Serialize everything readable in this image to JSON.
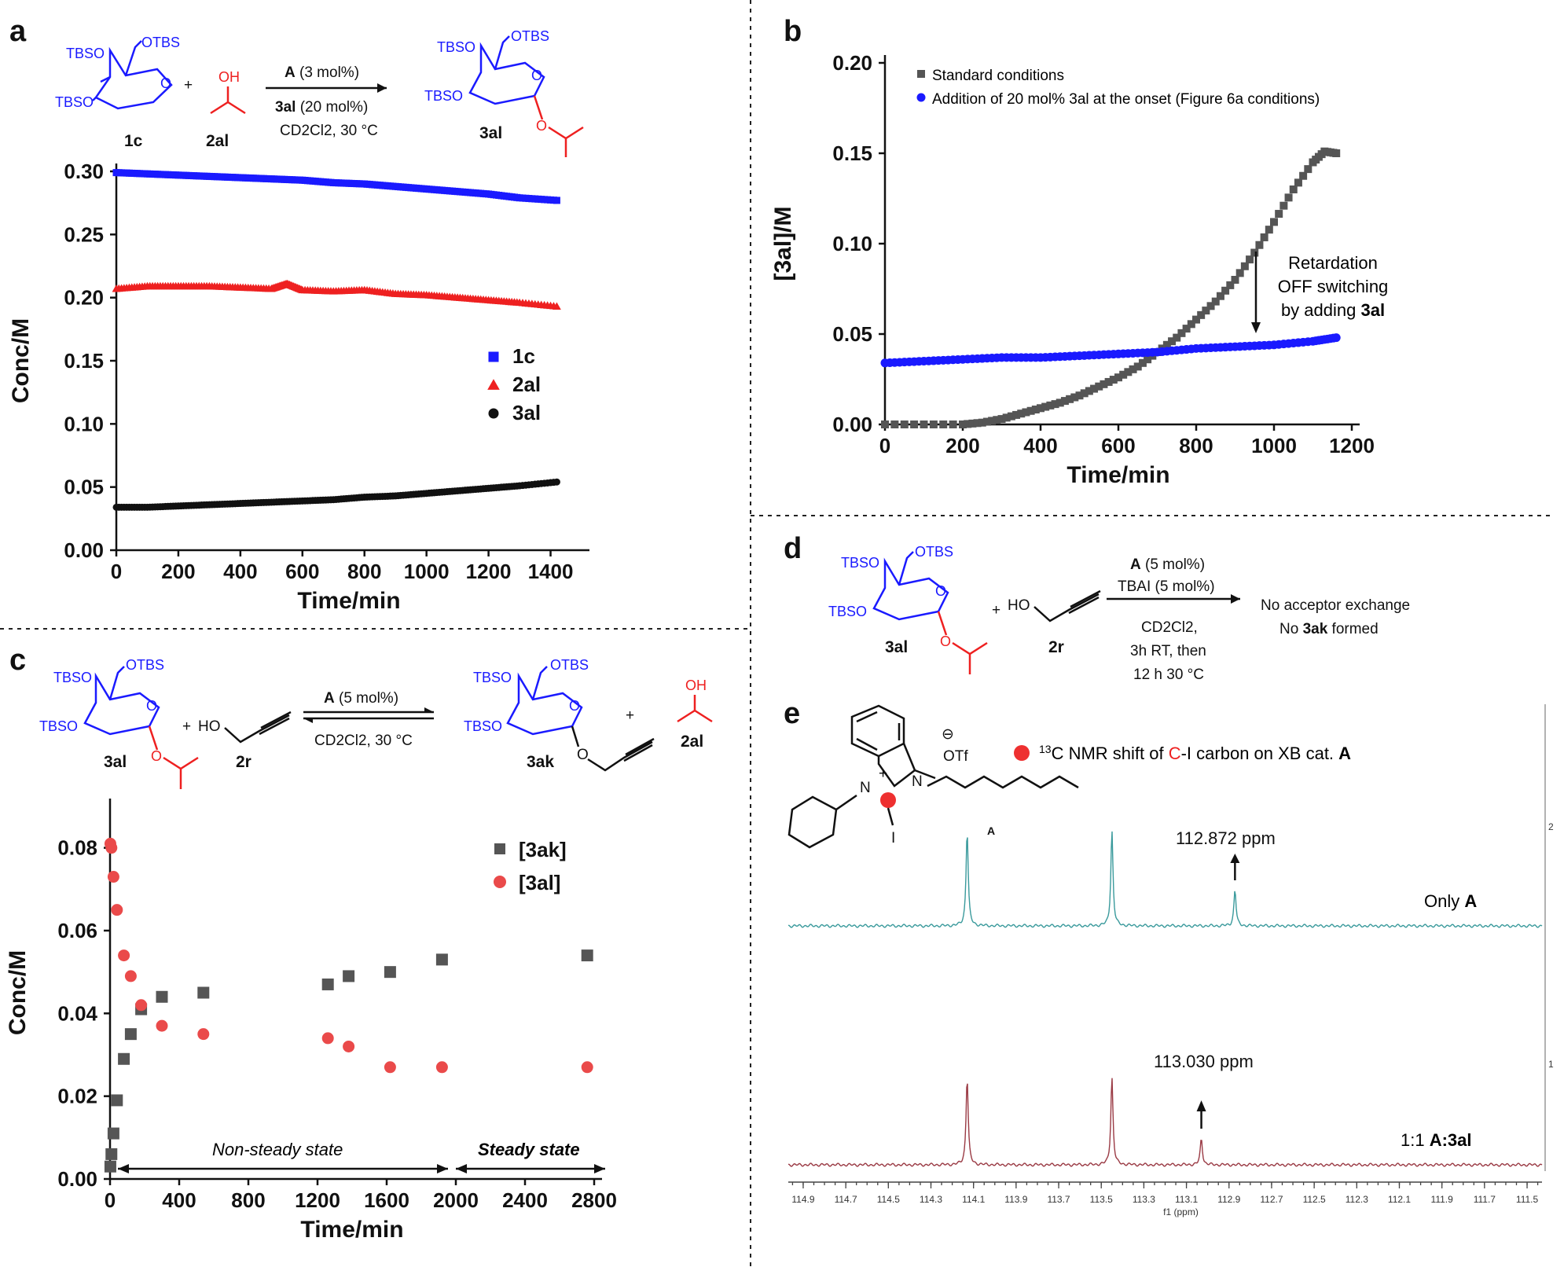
{
  "panels": {
    "a": {
      "label": "a",
      "scheme": {
        "reactant1": "1c",
        "reactant2": "2al",
        "product": "3al",
        "cond1_bold": "A",
        "cond1": " (3 mol%)",
        "cond2_bold": "3al",
        "cond2": " (20 mol%)",
        "cond3": "CD2Cl2, 30 °C"
      }
    },
    "b": {
      "label": "b"
    },
    "c": {
      "label": "c",
      "scheme": {
        "reactant1": "3al",
        "reactant2": "2r",
        "product1": "3ak",
        "product2": "2al",
        "cond1_bold": "A",
        "cond1": " (5 mol%)",
        "cond2": "CD2Cl2, 30 °C"
      },
      "annotations": {
        "nonsteady": "Non-steady state",
        "steady": "Steady state"
      }
    },
    "d": {
      "label": "d",
      "scheme": {
        "reactant1": "3al",
        "reactant2": "2r",
        "cond1_bold": "A",
        "cond1": " (5 mol%)",
        "cond2": "TBAI (5 mol%)",
        "cond3": "CD2Cl2,",
        "cond4": "3h RT, then",
        "cond5": "12 h 30 °C",
        "result1": "No acceptor exchange",
        "result2_pre": "No ",
        "result2_bold": "3ak",
        "result2_post": " formed"
      }
    },
    "e": {
      "label": "e",
      "legend_pre": "13",
      "legend_mid": "C NMR shift of ",
      "legend_red": "C",
      "legend_post": "-I carbon on XB cat. ",
      "legend_bold": "A",
      "mol_label": "A",
      "counterion": "OTf",
      "spectrum1_label_pre": "Only ",
      "spectrum1_label_bold": "A",
      "spectrum2_label_pre": "1:1 ",
      "spectrum2_label_bold": "A:3al",
      "peak1_label": "112.872 ppm",
      "peak2_label": "113.030 ppm",
      "right_ticks": [
        "2",
        "1"
      ]
    }
  },
  "chem_labels": {
    "tbso": "TBSO",
    "otbs": "OTBS",
    "oh": "OH",
    "ho": "HO",
    "o": "O",
    "n": "N",
    "i": "I",
    "plus": "+"
  },
  "colors": {
    "blue": "#1a1aff",
    "red": "#ee2020",
    "black": "#111111",
    "gray": "#555555",
    "teal": "#3a9a9c",
    "maroon": "#9a3a44",
    "salmon": "#ea4a4a"
  },
  "chart_data": [
    {
      "id": "a",
      "type": "scatter",
      "xlabel": "Time/min",
      "ylabel": "Conc/M",
      "xlim": [
        0,
        1500
      ],
      "ylim": [
        0,
        0.3
      ],
      "xticks": [
        0,
        200,
        400,
        600,
        800,
        1000,
        1200,
        1400
      ],
      "yticks": [
        0.0,
        0.05,
        0.1,
        0.15,
        0.2,
        0.25,
        0.3
      ],
      "legend": [
        "1c",
        "2al",
        "3al"
      ],
      "series": [
        {
          "name": "1c",
          "marker": "square",
          "color": "#1a1aff",
          "x": [
            0,
            100,
            200,
            300,
            400,
            500,
            600,
            700,
            800,
            900,
            1000,
            1100,
            1200,
            1300,
            1420
          ],
          "y": [
            0.299,
            0.298,
            0.297,
            0.296,
            0.295,
            0.294,
            0.293,
            0.291,
            0.29,
            0.288,
            0.286,
            0.284,
            0.282,
            0.279,
            0.277
          ]
        },
        {
          "name": "2al",
          "marker": "triangle",
          "color": "#ee2020",
          "x": [
            0,
            100,
            200,
            300,
            400,
            500,
            550,
            600,
            700,
            800,
            900,
            1000,
            1100,
            1200,
            1300,
            1420
          ],
          "y": [
            0.207,
            0.209,
            0.209,
            0.209,
            0.208,
            0.207,
            0.211,
            0.206,
            0.205,
            0.206,
            0.203,
            0.202,
            0.2,
            0.198,
            0.196,
            0.193
          ]
        },
        {
          "name": "3al",
          "marker": "circle",
          "color": "#111111",
          "x": [
            0,
            100,
            200,
            300,
            400,
            500,
            600,
            700,
            800,
            900,
            1000,
            1100,
            1200,
            1300,
            1420
          ],
          "y": [
            0.034,
            0.034,
            0.035,
            0.036,
            0.037,
            0.038,
            0.039,
            0.04,
            0.042,
            0.043,
            0.045,
            0.047,
            0.049,
            0.051,
            0.054
          ]
        }
      ]
    },
    {
      "id": "b",
      "type": "scatter",
      "xlabel": "Time/min",
      "ylabel": "[3al]/M",
      "xlim": [
        0,
        1200
      ],
      "ylim": [
        0,
        0.2
      ],
      "xticks": [
        0,
        200,
        400,
        600,
        800,
        1000,
        1200
      ],
      "yticks": [
        0.0,
        0.05,
        0.1,
        0.15,
        0.2
      ],
      "legend": [
        "Standard conditions",
        "Addition of 20 mol% 3al at the onset (Figure 6a conditions)"
      ],
      "annotation": {
        "line1": "Retardation",
        "line2": "OFF switching",
        "line3_pre": "by adding ",
        "line3_bold": "3al"
      },
      "series": [
        {
          "name": "Standard conditions",
          "marker": "square",
          "color": "#555555",
          "x": [
            0,
            100,
            200,
            250,
            300,
            350,
            400,
            450,
            500,
            550,
            600,
            650,
            700,
            750,
            800,
            850,
            900,
            950,
            1000,
            1050,
            1100,
            1130,
            1160
          ],
          "y": [
            0.0,
            0.0,
            0.0,
            0.001,
            0.003,
            0.006,
            0.009,
            0.012,
            0.016,
            0.021,
            0.026,
            0.032,
            0.04,
            0.048,
            0.058,
            0.068,
            0.08,
            0.095,
            0.112,
            0.13,
            0.145,
            0.151,
            0.15
          ]
        },
        {
          "name": "Addition of 20 mol% 3al at the onset (Figure 6a conditions)",
          "marker": "circle",
          "color": "#1a1aff",
          "x": [
            0,
            100,
            200,
            300,
            400,
            500,
            600,
            700,
            800,
            900,
            1000,
            1100,
            1160
          ],
          "y": [
            0.034,
            0.035,
            0.036,
            0.037,
            0.037,
            0.038,
            0.039,
            0.04,
            0.042,
            0.043,
            0.044,
            0.046,
            0.048
          ]
        }
      ]
    },
    {
      "id": "c",
      "type": "scatter",
      "xlabel": "Time/min",
      "ylabel": "Conc/M",
      "xlim": [
        0,
        2800
      ],
      "ylim": [
        0,
        0.09
      ],
      "xticks": [
        0,
        400,
        800,
        1200,
        1600,
        2000,
        2400,
        2800
      ],
      "yticks": [
        0.0,
        0.02,
        0.04,
        0.06,
        0.08
      ],
      "legend": [
        "[3ak]",
        "[3al]"
      ],
      "series": [
        {
          "name": "[3ak]",
          "marker": "square",
          "color": "#555555",
          "x": [
            2,
            8,
            20,
            40,
            80,
            120,
            180,
            300,
            540,
            1260,
            1380,
            1620,
            1920,
            2760
          ],
          "y": [
            0.003,
            0.006,
            0.011,
            0.019,
            0.029,
            0.035,
            0.041,
            0.044,
            0.045,
            0.047,
            0.049,
            0.05,
            0.053,
            0.054
          ]
        },
        {
          "name": "[3al]",
          "marker": "circle",
          "color": "#ea4a4a",
          "x": [
            2,
            8,
            20,
            40,
            80,
            120,
            180,
            300,
            540,
            1260,
            1380,
            1620,
            1920,
            2760
          ],
          "y": [
            0.081,
            0.08,
            0.073,
            0.065,
            0.054,
            0.049,
            0.042,
            0.037,
            0.035,
            0.034,
            0.032,
            0.027,
            0.027,
            0.027
          ]
        }
      ]
    },
    {
      "id": "e",
      "type": "line",
      "xlabel": "f1 (ppm)",
      "xlim": [
        114.97,
        111.43
      ],
      "xticks": [
        114.9,
        114.7,
        114.5,
        114.3,
        114.1,
        113.9,
        113.7,
        113.5,
        113.3,
        113.1,
        112.9,
        112.7,
        112.5,
        112.3,
        112.1,
        111.9,
        111.7,
        111.5
      ],
      "series": [
        {
          "name": "Only A",
          "color": "#3a9a9c",
          "peaks": [
            114.13,
            113.45,
            112.872
          ],
          "heights": [
            1.0,
            1.0,
            0.38
          ]
        },
        {
          "name": "1:1 A:3al",
          "color": "#9a3a44",
          "peaks": [
            114.13,
            113.45,
            113.03
          ],
          "heights": [
            1.0,
            1.0,
            0.3
          ]
        }
      ]
    }
  ]
}
